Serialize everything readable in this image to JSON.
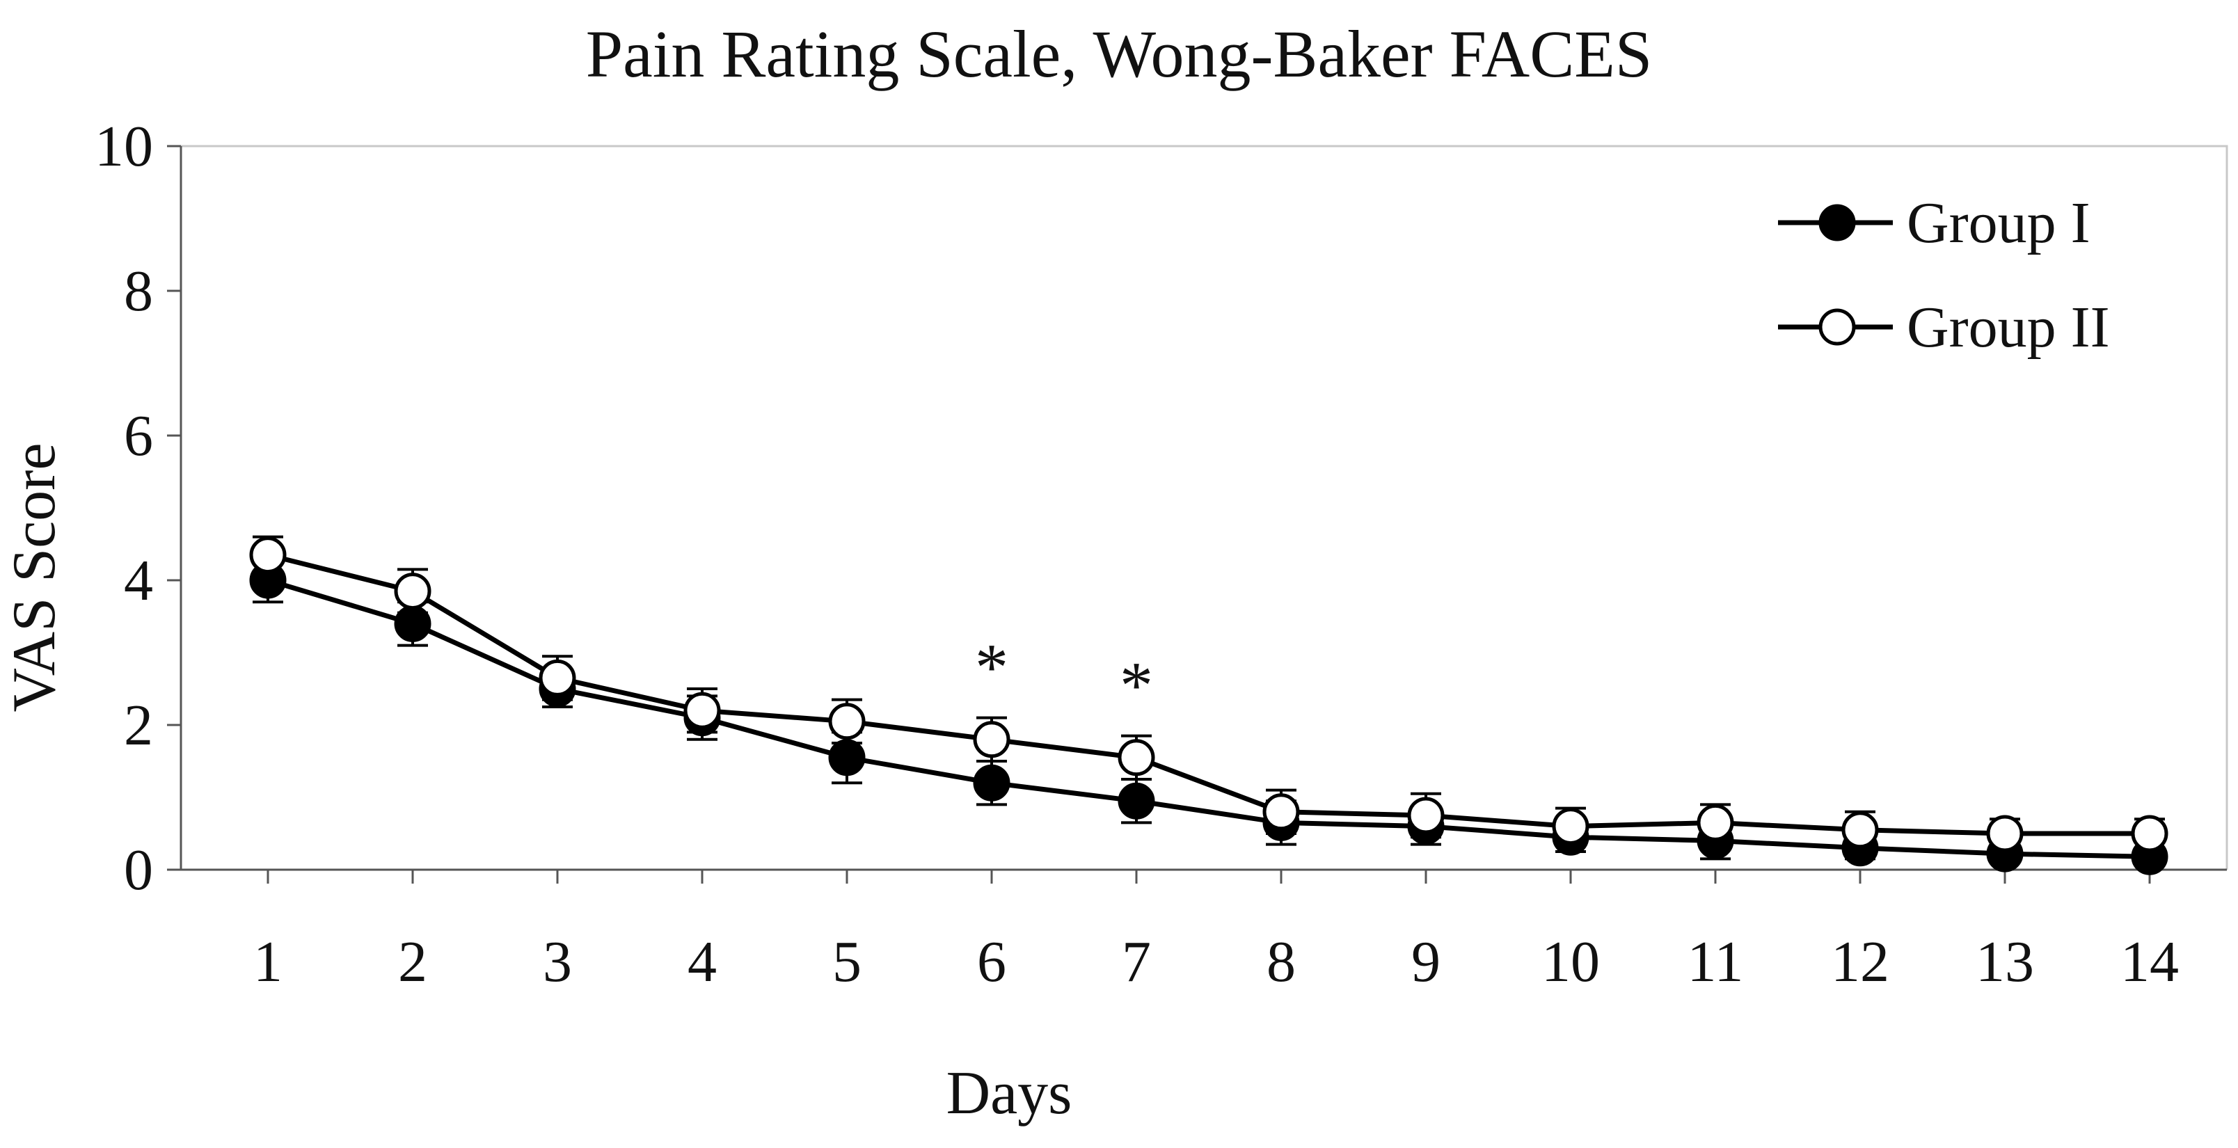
{
  "chart_data": {
    "type": "line",
    "title": "Pain Rating Scale, Wong-Baker FACES",
    "xlabel": "Days",
    "ylabel": "VAS Score",
    "x": [
      1,
      2,
      3,
      4,
      5,
      6,
      7,
      8,
      9,
      10,
      11,
      12,
      13,
      14
    ],
    "ylim": [
      0,
      10
    ],
    "yticks": [
      0,
      2,
      4,
      6,
      8,
      10
    ],
    "grid": false,
    "legend_position": "top-right",
    "series": [
      {
        "name": "Group I",
        "marker": "filled-circle",
        "color": "#000000",
        "values": [
          4.0,
          3.4,
          2.5,
          2.1,
          1.55,
          1.2,
          0.95,
          0.65,
          0.6,
          0.45,
          0.4,
          0.3,
          0.22,
          0.18
        ],
        "error": [
          0.3,
          0.3,
          0.25,
          0.3,
          0.35,
          0.3,
          0.3,
          0.3,
          0.25,
          0.2,
          0.25,
          0.15,
          0.1,
          0.1
        ]
      },
      {
        "name": "Group II",
        "marker": "open-circle",
        "color": "#000000",
        "values": [
          4.35,
          3.85,
          2.65,
          2.2,
          2.05,
          1.8,
          1.55,
          0.8,
          0.75,
          0.6,
          0.65,
          0.55,
          0.5,
          0.5
        ],
        "error": [
          0.25,
          0.3,
          0.3,
          0.3,
          0.3,
          0.3,
          0.3,
          0.3,
          0.3,
          0.25,
          0.25,
          0.25,
          0.2,
          0.2
        ]
      }
    ],
    "annotations": [
      {
        "text": "*",
        "x": 6
      },
      {
        "text": "*",
        "x": 7
      }
    ]
  }
}
